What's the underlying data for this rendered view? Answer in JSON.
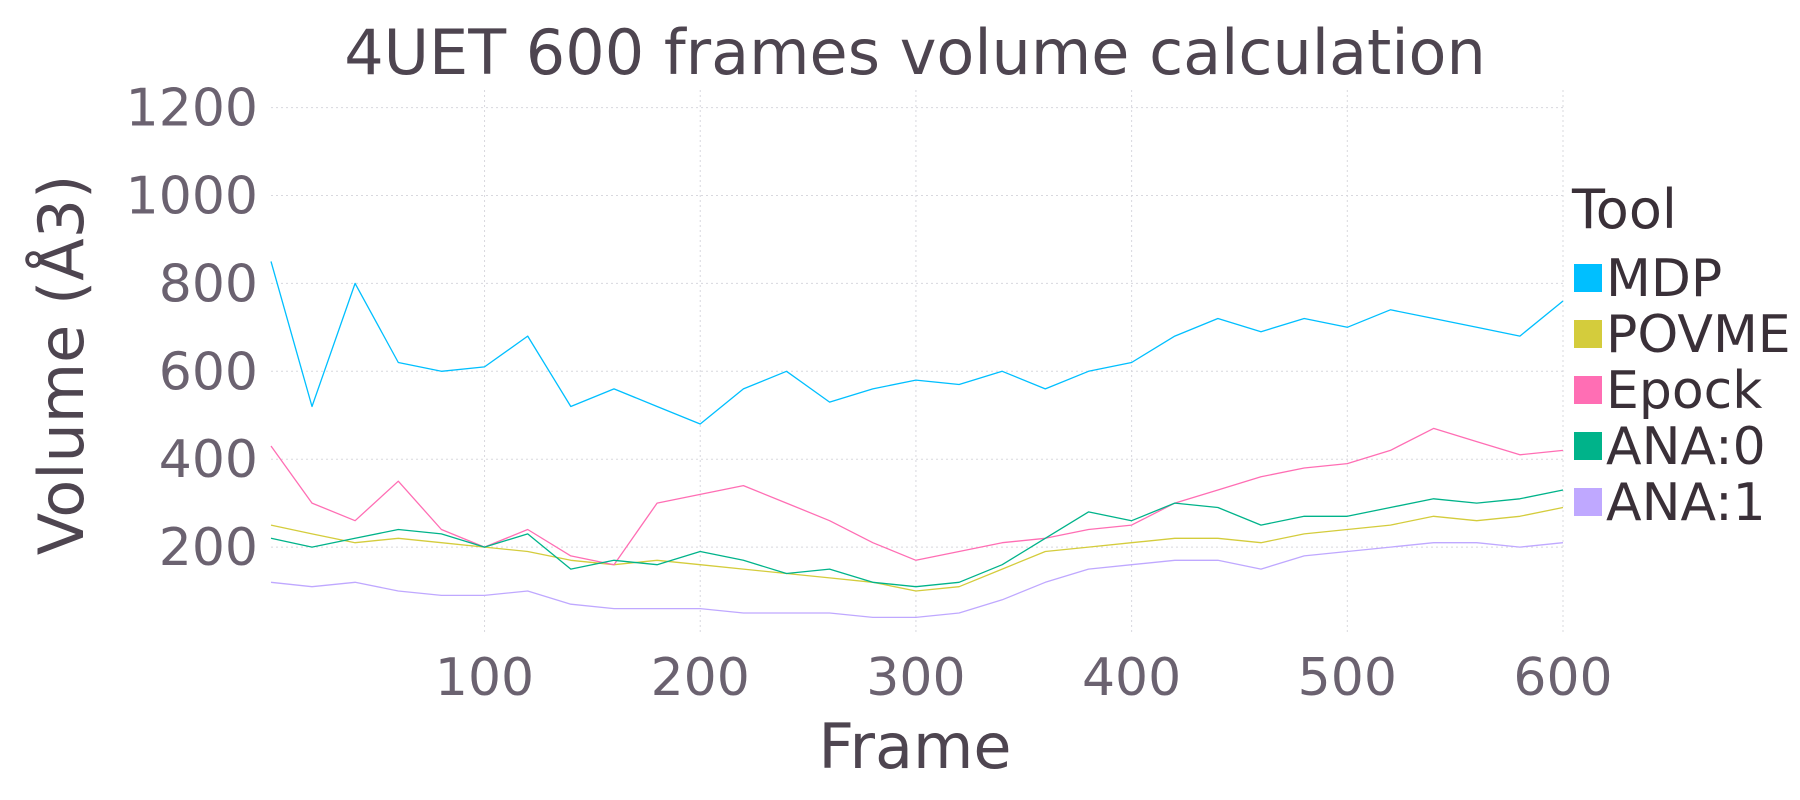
{
  "chart_data": {
    "type": "line",
    "title": "4UET 600 frames volume calculation",
    "xlabel": "Frame",
    "ylabel": "Volume (Å3)",
    "xlim": [
      1,
      600
    ],
    "ylim": [
      0,
      1240
    ],
    "x_ticks": [
      100,
      200,
      300,
      400,
      500,
      600
    ],
    "y_ticks": [
      200,
      400,
      600,
      800,
      1000,
      1200
    ],
    "x_tick_labels": [
      "100",
      "200",
      "300",
      "400",
      "500",
      "600"
    ],
    "y_tick_labels": [
      "200",
      "400",
      "600",
      "800",
      "1000",
      "1200"
    ],
    "grid": true,
    "legend": {
      "title": "Tool",
      "position": "right"
    },
    "series": [
      {
        "name": "MDP",
        "color": "#00bfff",
        "x": [
          1,
          20,
          40,
          60,
          80,
          100,
          120,
          140,
          160,
          180,
          200,
          220,
          240,
          260,
          280,
          300,
          320,
          340,
          360,
          380,
          400,
          420,
          440,
          460,
          480,
          500,
          520,
          540,
          560,
          580,
          600
        ],
        "values": [
          850,
          520,
          800,
          620,
          600,
          610,
          680,
          520,
          560,
          520,
          480,
          560,
          600,
          530,
          560,
          580,
          570,
          600,
          560,
          600,
          620,
          680,
          720,
          690,
          720,
          700,
          740,
          720,
          700,
          680,
          760
        ]
      },
      {
        "name": "POVME",
        "color": "#d4cc3c",
        "x": [
          1,
          20,
          40,
          60,
          80,
          100,
          120,
          140,
          160,
          180,
          200,
          220,
          240,
          260,
          280,
          300,
          320,
          340,
          360,
          380,
          400,
          420,
          440,
          460,
          480,
          500,
          520,
          540,
          560,
          580,
          600
        ],
        "values": [
          250,
          230,
          210,
          220,
          210,
          200,
          190,
          170,
          160,
          170,
          160,
          150,
          140,
          130,
          120,
          100,
          110,
          150,
          190,
          200,
          210,
          220,
          220,
          210,
          230,
          240,
          250,
          270,
          260,
          270,
          290
        ]
      },
      {
        "name": "Epock",
        "color": "#ff6eb4",
        "x": [
          1,
          20,
          40,
          60,
          80,
          100,
          120,
          140,
          160,
          180,
          200,
          220,
          240,
          260,
          280,
          300,
          320,
          340,
          360,
          380,
          400,
          420,
          440,
          460,
          480,
          500,
          520,
          540,
          560,
          580,
          600
        ],
        "values": [
          430,
          300,
          260,
          350,
          240,
          200,
          240,
          180,
          160,
          300,
          320,
          340,
          300,
          260,
          210,
          170,
          190,
          210,
          220,
          240,
          250,
          300,
          330,
          360,
          380,
          390,
          420,
          470,
          440,
          410,
          420
        ]
      },
      {
        "name": "ANA:0",
        "color": "#00b38a",
        "x": [
          1,
          20,
          40,
          60,
          80,
          100,
          120,
          140,
          160,
          180,
          200,
          220,
          240,
          260,
          280,
          300,
          320,
          340,
          360,
          380,
          400,
          420,
          440,
          460,
          480,
          500,
          520,
          540,
          560,
          580,
          600
        ],
        "values": [
          220,
          200,
          220,
          240,
          230,
          200,
          230,
          150,
          170,
          160,
          190,
          170,
          140,
          150,
          120,
          110,
          120,
          160,
          220,
          280,
          260,
          300,
          290,
          250,
          270,
          270,
          290,
          310,
          300,
          310,
          330
        ]
      },
      {
        "name": "ANA:1",
        "color": "#bfa8ff",
        "x": [
          1,
          20,
          40,
          60,
          80,
          100,
          120,
          140,
          160,
          180,
          200,
          220,
          240,
          260,
          280,
          300,
          320,
          340,
          360,
          380,
          400,
          420,
          440,
          460,
          480,
          500,
          520,
          540,
          560,
          580,
          600
        ],
        "values": [
          120,
          110,
          120,
          100,
          90,
          90,
          100,
          70,
          60,
          60,
          60,
          50,
          50,
          50,
          40,
          40,
          50,
          80,
          120,
          150,
          160,
          170,
          170,
          150,
          180,
          190,
          200,
          210,
          210,
          200,
          210
        ]
      }
    ]
  }
}
